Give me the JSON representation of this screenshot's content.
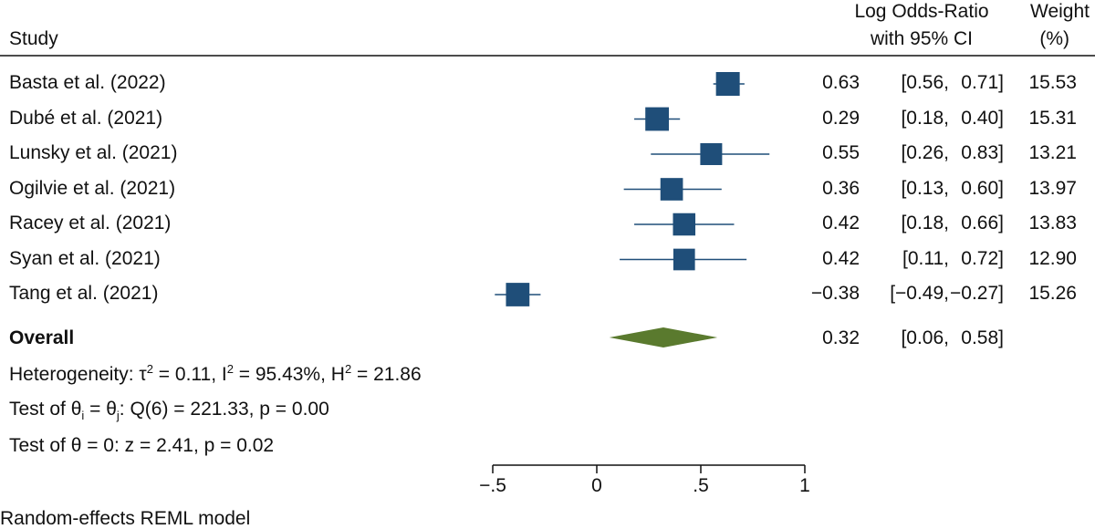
{
  "header": {
    "study": "Study",
    "effect_line1": "Log Odds-Ratio",
    "effect_line2": "with 95% CI",
    "weight_line1": "Weight",
    "weight_line2": "(%)"
  },
  "colors": {
    "marker": "#1f4e79",
    "diamond": "#5a7a2e",
    "axis": "#111111"
  },
  "chart_data": {
    "type": "forest",
    "x_axis": {
      "ticks": [
        -0.5,
        0,
        0.5,
        1
      ],
      "tick_labels": [
        "−.5",
        "0",
        ".5",
        "1"
      ],
      "range": [
        -0.5,
        1
      ]
    },
    "studies": [
      {
        "label": "Basta et al. (2022)",
        "estimate": 0.63,
        "ci_low": 0.56,
        "ci_high": 0.71,
        "est_text": "0.63",
        "ci_low_text": "[0.56,",
        "ci_high_text": "0.71]",
        "weight": 15.53,
        "weight_text": "15.53"
      },
      {
        "label": "Dubé et al. (2021)",
        "estimate": 0.29,
        "ci_low": 0.18,
        "ci_high": 0.4,
        "est_text": "0.29",
        "ci_low_text": "[0.18,",
        "ci_high_text": "0.40]",
        "weight": 15.31,
        "weight_text": "15.31"
      },
      {
        "label": "Lunsky et al. (2021)",
        "estimate": 0.55,
        "ci_low": 0.26,
        "ci_high": 0.83,
        "est_text": "0.55",
        "ci_low_text": "[0.26,",
        "ci_high_text": "0.83]",
        "weight": 13.21,
        "weight_text": "13.21"
      },
      {
        "label": "Ogilvie et al. (2021)",
        "estimate": 0.36,
        "ci_low": 0.13,
        "ci_high": 0.6,
        "est_text": "0.36",
        "ci_low_text": "[0.13,",
        "ci_high_text": "0.60]",
        "weight": 13.97,
        "weight_text": "13.97"
      },
      {
        "label": "Racey et al. (2021)",
        "estimate": 0.42,
        "ci_low": 0.18,
        "ci_high": 0.66,
        "est_text": "0.42",
        "ci_low_text": "[0.18,",
        "ci_high_text": "0.66]",
        "weight": 13.83,
        "weight_text": "13.83"
      },
      {
        "label": "Syan et al. (2021)",
        "estimate": 0.42,
        "ci_low": 0.11,
        "ci_high": 0.72,
        "est_text": "0.42",
        "ci_low_text": "[0.11,",
        "ci_high_text": "0.72]",
        "weight": 12.9,
        "weight_text": "12.90"
      },
      {
        "label": "Tang et al. (2021)",
        "estimate": -0.38,
        "ci_low": -0.49,
        "ci_high": -0.27,
        "est_text": "−0.38",
        "ci_low_text": "[−0.49,",
        "ci_high_text": "−0.27]",
        "weight": 15.26,
        "weight_text": "15.26"
      }
    ],
    "overall": {
      "label": "Overall",
      "estimate": 0.32,
      "ci_low": 0.06,
      "ci_high": 0.58,
      "est_text": "0.32",
      "ci_low_text": "[0.06,",
      "ci_high_text": "0.58]"
    },
    "heterogeneity": {
      "prefix": "Heterogeneity: τ",
      "tau_val": " = 0.11, I",
      "i_val": " = 95.43%, H",
      "h_val": " = 21.86",
      "sup": "2"
    },
    "test_ij": {
      "prefix": "Test of θ",
      "sub_i": "i",
      "mid": " = θ",
      "sub_j": "j",
      "rest": ": Q(6) = 221.33, p = 0.00"
    },
    "test_zero": "Test of θ = 0: z = 2.41, p = 0.02",
    "model_note": "Random-effects REML model"
  }
}
